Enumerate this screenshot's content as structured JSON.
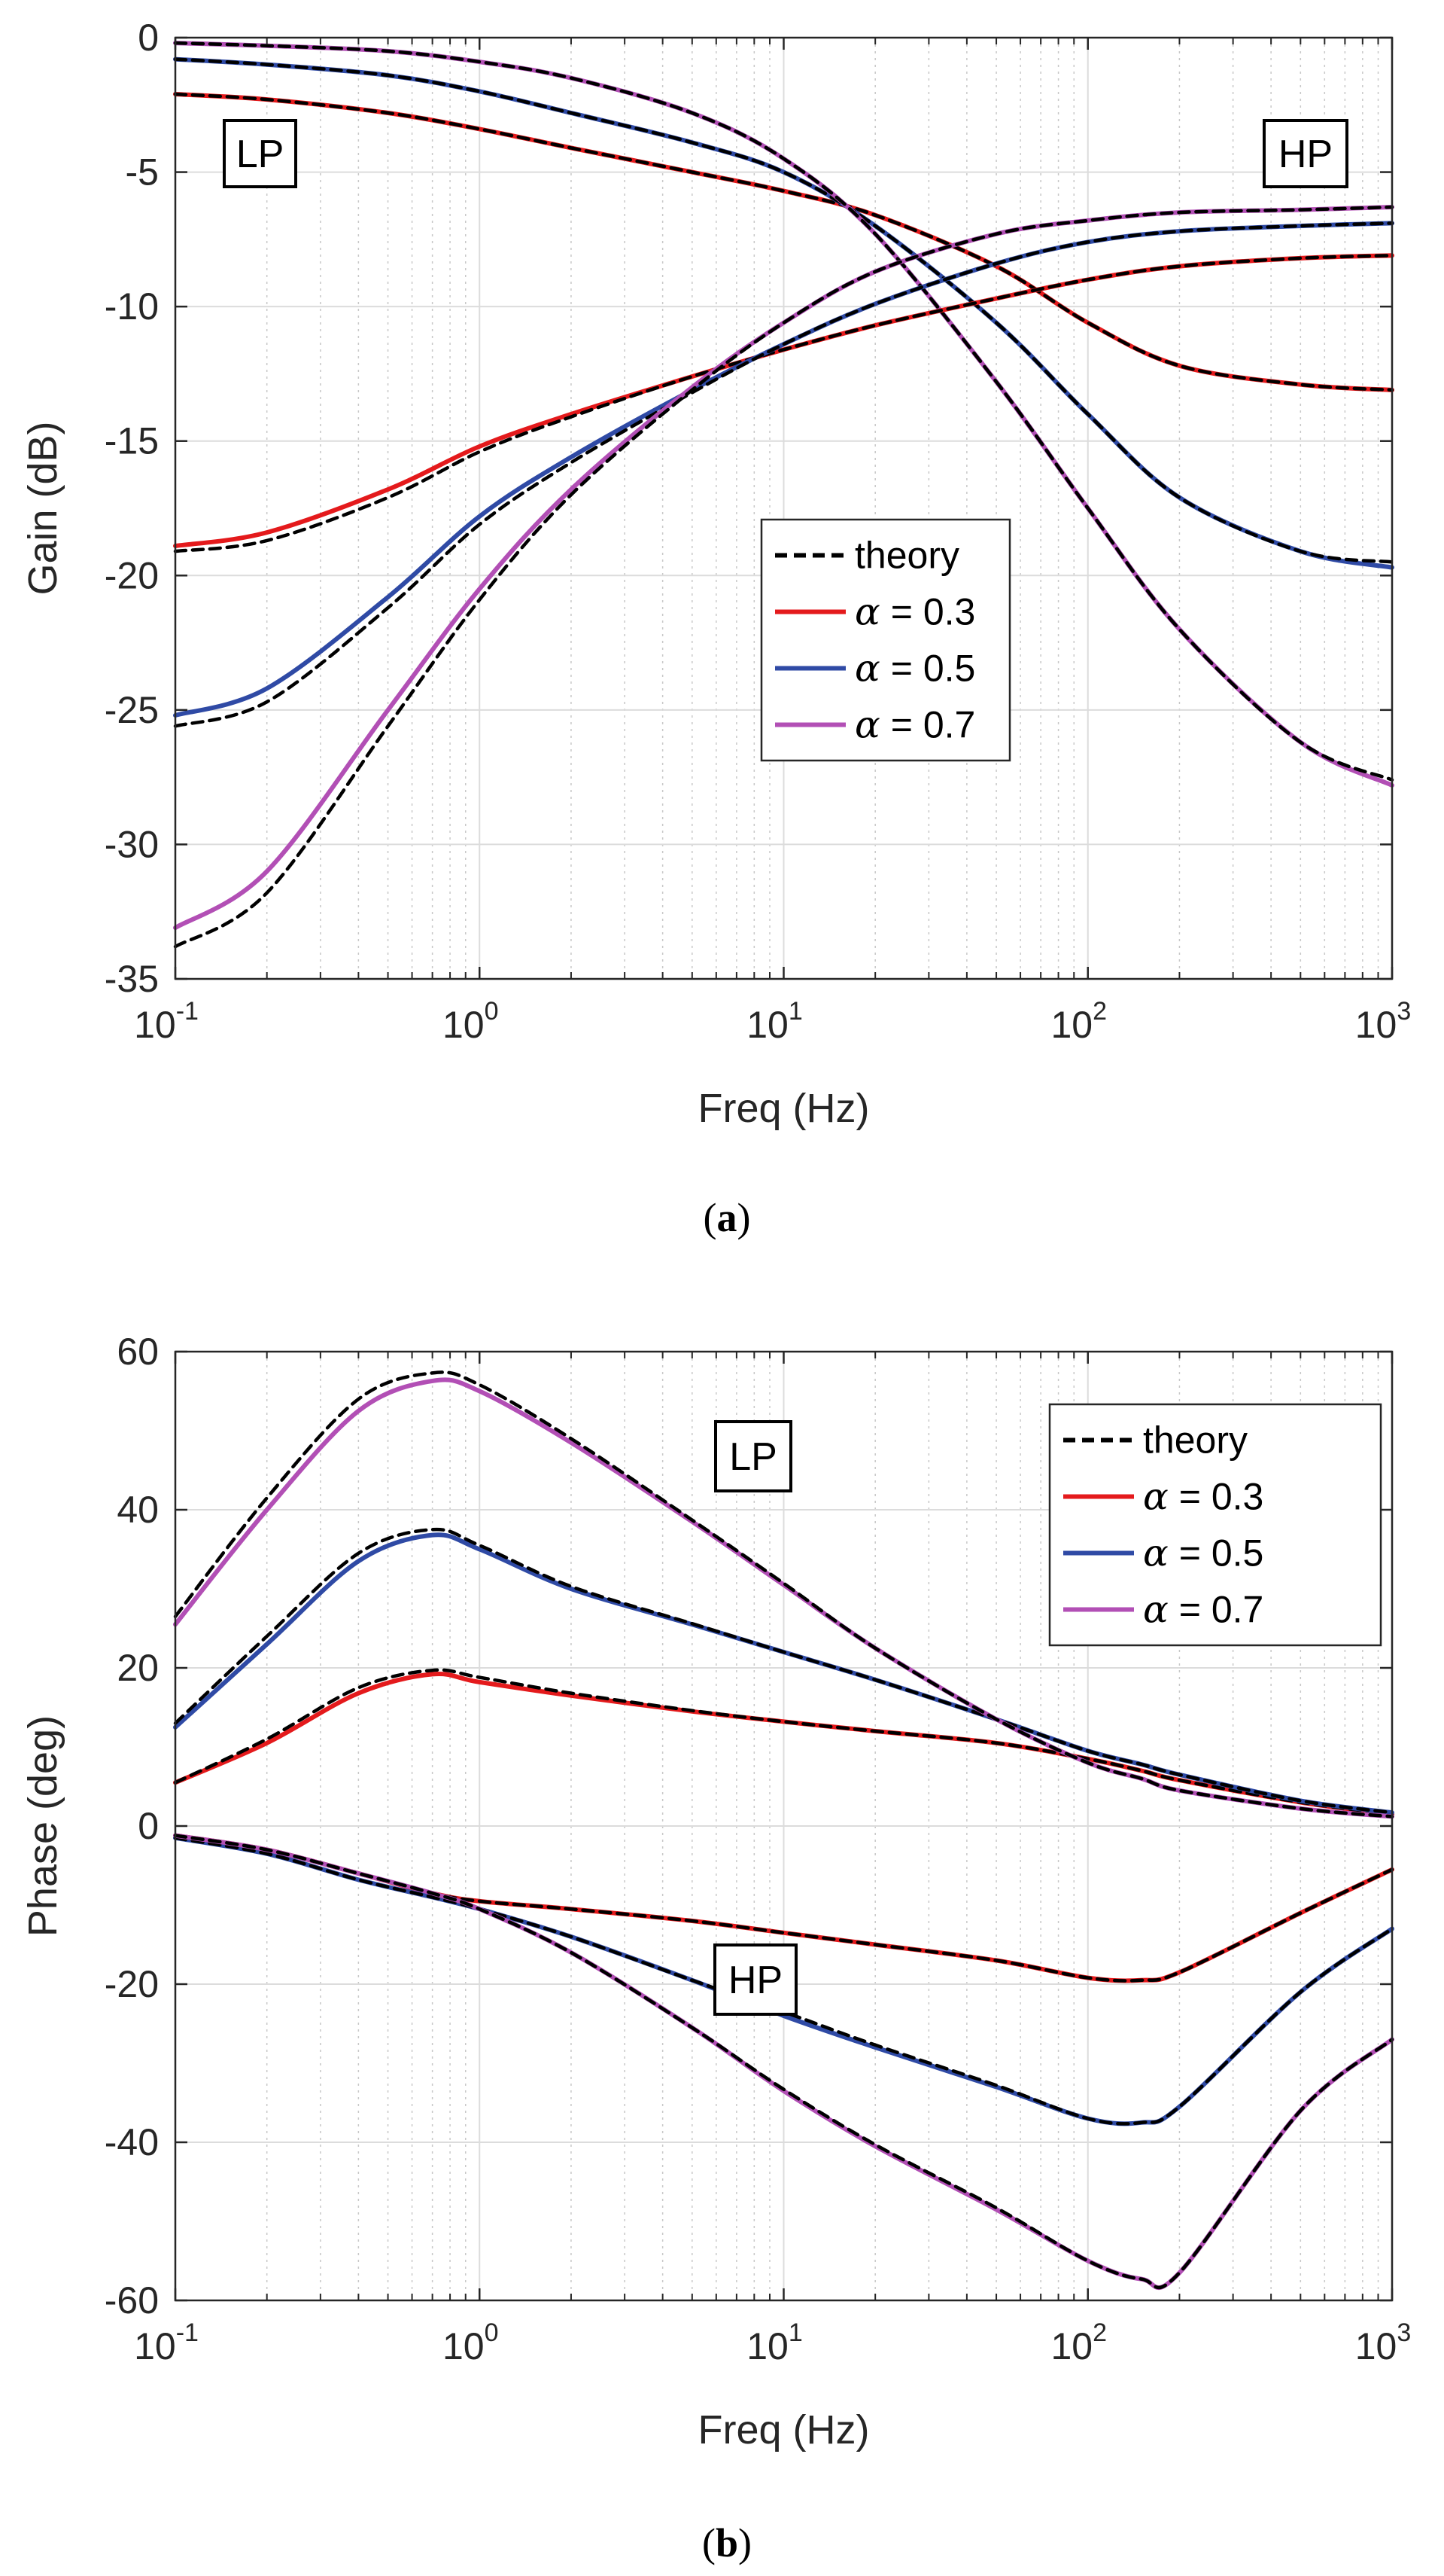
{
  "chart_data": [
    {
      "type": "line",
      "panel": "a",
      "caption": "a",
      "xscale": "log",
      "xlim": [
        0.1,
        1000
      ],
      "ylim": [
        -35,
        0
      ],
      "xlabel": "Freq (Hz)",
      "ylabel": "Gain (dB)",
      "yticks": [
        0,
        -5,
        -10,
        -15,
        -20,
        -25,
        -30,
        -35
      ],
      "xticks": [
        {
          "base": "10",
          "exp": "-1"
        },
        {
          "base": "10",
          "exp": "0"
        },
        {
          "base": "10",
          "exp": "1"
        },
        {
          "base": "10",
          "exp": "2"
        },
        {
          "base": "10",
          "exp": "3"
        }
      ],
      "grid": true,
      "legend_position": "center-right",
      "legend": [
        {
          "label": "theory",
          "style": "dashed",
          "color": "#000000"
        },
        {
          "symbol": "α",
          "label": "= 0.3",
          "color": "#e41a1c"
        },
        {
          "symbol": "α",
          "label": "= 0.5",
          "color": "#2f4aa5"
        },
        {
          "symbol": "α",
          "label": "= 0.7",
          "color": "#b24fb5"
        }
      ],
      "annotations": [
        {
          "text": "LP",
          "position": "top-left"
        },
        {
          "text": "HP",
          "position": "top-right"
        }
      ],
      "x": [
        0.1,
        0.2,
        0.5,
        1,
        2,
        5,
        10,
        20,
        50,
        100,
        200,
        500,
        1000
      ],
      "series": [
        {
          "name": "LP α = 0.3",
          "color": "#e41a1c",
          "values": [
            -2.1,
            -2.3,
            -2.8,
            -3.4,
            -4.1,
            -5.0,
            -5.7,
            -6.6,
            -8.5,
            -10.6,
            -12.2,
            -12.9,
            -13.1
          ]
        },
        {
          "name": "LP α = 0.3 theory",
          "color": "#000000",
          "dashed": true,
          "values": [
            -2.1,
            -2.3,
            -2.8,
            -3.4,
            -4.1,
            -5.0,
            -5.7,
            -6.6,
            -8.5,
            -10.6,
            -12.2,
            -12.9,
            -13.1
          ]
        },
        {
          "name": "LP α = 0.5",
          "color": "#2f4aa5",
          "values": [
            -0.8,
            -1.0,
            -1.4,
            -2.0,
            -2.8,
            -3.9,
            -5.0,
            -7.0,
            -10.6,
            -14.0,
            -17.1,
            -19.1,
            -19.7
          ]
        },
        {
          "name": "LP α = 0.5 theory",
          "color": "#000000",
          "dashed": true,
          "values": [
            -0.8,
            -1.0,
            -1.4,
            -2.0,
            -2.8,
            -3.9,
            -5.0,
            -7.0,
            -10.6,
            -14.0,
            -17.1,
            -19.1,
            -19.5
          ]
        },
        {
          "name": "LP α = 0.7",
          "color": "#b24fb5",
          "values": [
            -0.2,
            -0.3,
            -0.5,
            -0.9,
            -1.5,
            -2.8,
            -4.5,
            -7.3,
            -12.8,
            -17.5,
            -22.0,
            -26.2,
            -27.8
          ]
        },
        {
          "name": "LP α = 0.7 theory",
          "color": "#000000",
          "dashed": true,
          "values": [
            -0.2,
            -0.3,
            -0.5,
            -0.9,
            -1.5,
            -2.8,
            -4.5,
            -7.3,
            -12.8,
            -17.5,
            -22.0,
            -26.2,
            -27.6
          ]
        },
        {
          "name": "HP α = 0.3",
          "color": "#e41a1c",
          "values": [
            -18.9,
            -18.4,
            -16.8,
            -15.2,
            -14.0,
            -12.6,
            -11.6,
            -10.7,
            -9.7,
            -9.0,
            -8.5,
            -8.2,
            -8.1
          ]
        },
        {
          "name": "HP α = 0.3 theory",
          "color": "#000000",
          "dashed": true,
          "values": [
            -19.1,
            -18.7,
            -17.1,
            -15.4,
            -14.1,
            -12.6,
            -11.6,
            -10.7,
            -9.7,
            -9.0,
            -8.5,
            -8.2,
            -8.1
          ]
        },
        {
          "name": "HP α = 0.5",
          "color": "#2f4aa5",
          "values": [
            -25.2,
            -24.2,
            -20.8,
            -17.8,
            -15.6,
            -13.1,
            -11.4,
            -9.9,
            -8.4,
            -7.6,
            -7.2,
            -7.0,
            -6.9
          ]
        },
        {
          "name": "HP α = 0.5 theory",
          "color": "#000000",
          "dashed": true,
          "values": [
            -25.6,
            -24.7,
            -21.2,
            -18.1,
            -15.8,
            -13.2,
            -11.4,
            -9.9,
            -8.4,
            -7.6,
            -7.2,
            -7.0,
            -6.9
          ]
        },
        {
          "name": "HP α = 0.7",
          "color": "#b24fb5",
          "values": [
            -33.1,
            -31.0,
            -25.0,
            -20.5,
            -16.8,
            -13.0,
            -10.6,
            -8.7,
            -7.3,
            -6.8,
            -6.5,
            -6.4,
            -6.3
          ]
        },
        {
          "name": "HP α = 0.7 theory",
          "color": "#000000",
          "dashed": true,
          "values": [
            -33.8,
            -31.8,
            -25.6,
            -20.9,
            -17.0,
            -13.1,
            -10.6,
            -8.7,
            -7.3,
            -6.8,
            -6.5,
            -6.4,
            -6.3
          ]
        }
      ]
    },
    {
      "type": "line",
      "panel": "b",
      "caption": "b",
      "xscale": "log",
      "xlim": [
        0.1,
        1000
      ],
      "ylim": [
        -60,
        60
      ],
      "xlabel": "Freq (Hz)",
      "ylabel": "Phase (deg)",
      "yticks": [
        60,
        40,
        20,
        0,
        -20,
        -40,
        -60
      ],
      "xticks": [
        {
          "base": "10",
          "exp": "-1"
        },
        {
          "base": "10",
          "exp": "0"
        },
        {
          "base": "10",
          "exp": "1"
        },
        {
          "base": "10",
          "exp": "2"
        },
        {
          "base": "10",
          "exp": "3"
        }
      ],
      "grid": true,
      "legend_position": "top-right",
      "legend": [
        {
          "label": "theory",
          "style": "dashed",
          "color": "#000000"
        },
        {
          "symbol": "α",
          "label": "= 0.3",
          "color": "#e41a1c"
        },
        {
          "symbol": "α",
          "label": "= 0.5",
          "color": "#2f4aa5"
        },
        {
          "symbol": "α",
          "label": "= 0.7",
          "color": "#b24fb5"
        }
      ],
      "annotations": [
        {
          "text": "LP",
          "position": "upper-center"
        },
        {
          "text": "HP",
          "position": "lower-center"
        }
      ],
      "x": [
        0.1,
        0.2,
        0.4,
        0.7,
        1,
        2,
        5,
        10,
        20,
        50,
        100,
        150,
        200,
        500,
        1000
      ],
      "series": [
        {
          "name": "LP α = 0.3",
          "color": "#e41a1c",
          "values": [
            5.5,
            10.5,
            16.8,
            19.2,
            18.2,
            16.5,
            14.5,
            13.2,
            12.0,
            10.5,
            8.5,
            7.0,
            5.8,
            3.0,
            1.5
          ]
        },
        {
          "name": "LP α = 0.3 theory",
          "color": "#000000",
          "dashed": true,
          "values": [
            5.5,
            11.0,
            17.5,
            19.7,
            18.8,
            16.8,
            14.6,
            13.2,
            12.0,
            10.5,
            8.5,
            7.0,
            5.8,
            3.0,
            1.5
          ]
        },
        {
          "name": "LP α = 0.5",
          "color": "#2f4aa5",
          "values": [
            12.5,
            23.0,
            33.5,
            36.8,
            35.0,
            30.0,
            25.5,
            22.0,
            18.5,
            13.5,
            9.5,
            7.8,
            6.5,
            3.2,
            1.7
          ]
        },
        {
          "name": "LP α = 0.5 theory",
          "color": "#000000",
          "dashed": true,
          "values": [
            13.0,
            24.0,
            34.5,
            37.5,
            35.5,
            30.3,
            25.6,
            22.0,
            18.5,
            13.5,
            9.5,
            7.8,
            6.5,
            3.2,
            1.7
          ]
        },
        {
          "name": "LP α = 0.7",
          "color": "#b24fb5",
          "values": [
            25.5,
            40.0,
            52.5,
            56.3,
            55.0,
            48.5,
            38.5,
            30.5,
            22.5,
            13.5,
            8.0,
            6.0,
            4.5,
            2.2,
            1.2
          ]
        },
        {
          "name": "LP α = 0.7 theory",
          "color": "#000000",
          "dashed": true,
          "values": [
            26.5,
            41.5,
            54.0,
            57.3,
            55.8,
            49.0,
            38.7,
            30.7,
            22.5,
            13.5,
            8.0,
            6.0,
            4.5,
            2.2,
            1.2
          ]
        },
        {
          "name": "HP α = 0.3",
          "color": "#e41a1c",
          "values": [
            -1.2,
            -3.0,
            -6.0,
            -8.5,
            -9.5,
            -10.5,
            -12.0,
            -13.5,
            -15.0,
            -17.0,
            -19.2,
            -19.5,
            -18.5,
            -11.0,
            -5.5
          ]
        },
        {
          "name": "HP α = 0.3 theory",
          "color": "#000000",
          "dashed": true,
          "values": [
            -1.2,
            -3.0,
            -6.0,
            -8.5,
            -9.5,
            -10.5,
            -12.0,
            -13.5,
            -15.0,
            -17.0,
            -19.2,
            -19.5,
            -18.5,
            -11.0,
            -5.5
          ]
        },
        {
          "name": "HP α = 0.5",
          "color": "#2f4aa5",
          "values": [
            -1.5,
            -3.5,
            -6.8,
            -9.0,
            -10.5,
            -14.0,
            -19.5,
            -24.0,
            -28.0,
            -33.0,
            -37.0,
            -37.5,
            -35.5,
            -21.0,
            -13.0
          ]
        },
        {
          "name": "HP α = 0.5 theory",
          "color": "#000000",
          "dashed": true,
          "values": [
            -1.5,
            -3.5,
            -6.8,
            -9.0,
            -10.5,
            -14.0,
            -19.5,
            -23.5,
            -27.7,
            -32.8,
            -37.0,
            -37.5,
            -35.5,
            -21.0,
            -13.0
          ]
        },
        {
          "name": "HP α = 0.7",
          "color": "#b24fb5",
          "values": [
            -1.2,
            -3.0,
            -6.0,
            -8.5,
            -10.5,
            -16.0,
            -25.5,
            -33.5,
            -40.5,
            -48.5,
            -55.0,
            -57.3,
            -56.5,
            -36.0,
            -27.0
          ]
        },
        {
          "name": "HP α = 0.7 theory",
          "color": "#000000",
          "dashed": true,
          "values": [
            -1.2,
            -3.0,
            -6.0,
            -8.5,
            -10.5,
            -16.0,
            -25.5,
            -33.3,
            -40.3,
            -48.3,
            -55.0,
            -57.3,
            -56.5,
            -36.0,
            -27.0
          ]
        }
      ]
    }
  ]
}
